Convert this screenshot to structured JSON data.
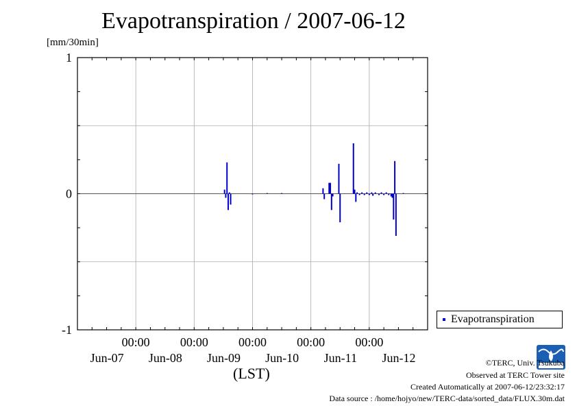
{
  "title": "Evapotranspiration / 2007-06-12",
  "y_unit_label": "[mm/30min]",
  "xlabel": "(LST)",
  "legend": {
    "label": "Evapotranspiration",
    "color": "#0000cc"
  },
  "credits": {
    "org": "©TERC, Univ. Tsukuba",
    "site": "Observed at TERC Tower site",
    "created": "Created Automatically at 2007-06-12/23:32:17",
    "source": "Data source : /home/hojyo/new/TERC-data/sorted_data/FLUX.30m.dat"
  },
  "logo": {
    "text": "TERC",
    "color": "#1a5fb4"
  },
  "chart_data": {
    "type": "bar",
    "title": "Evapotranspiration / 2007-06-12",
    "xlabel": "(LST)",
    "ylabel": "[mm/30min]",
    "ylim": [
      -1,
      1
    ],
    "xlim": [
      "2007-06-06T00:00",
      "2007-06-12T00:00"
    ],
    "yticks": [
      {
        "value": 1,
        "label": "1"
      },
      {
        "value": 0,
        "label": "0"
      },
      {
        "value": -1,
        "label": "-1"
      }
    ],
    "xticks": [
      {
        "x": "2007-06-07T00:00",
        "time": "00:00",
        "date": "Jun-07"
      },
      {
        "x": "2007-06-08T00:00",
        "time": "00:00",
        "date": "Jun-08"
      },
      {
        "x": "2007-06-09T00:00",
        "time": "00:00",
        "date": "Jun-09"
      },
      {
        "x": "2007-06-10T00:00",
        "time": "00:00",
        "date": "Jun-10"
      },
      {
        "x": "2007-06-11T00:00",
        "time": "00:00",
        "date": "Jun-11"
      }
    ],
    "xtick_date_labels_extra": [
      {
        "x": "2007-06-12T00:00",
        "date": "Jun-12"
      }
    ],
    "grid": true,
    "legend_position": "bottom-right",
    "series": [
      {
        "name": "Evapotranspiration",
        "color": "#0000cc",
        "points": [
          {
            "x": "2007-06-08T12:30",
            "y": 0.03
          },
          {
            "x": "2007-06-08T13:00",
            "y": -0.03
          },
          {
            "x": "2007-06-08T13:30",
            "y": 0.23
          },
          {
            "x": "2007-06-08T14:00",
            "y": -0.12
          },
          {
            "x": "2007-06-08T14:30",
            "y": 0.01
          },
          {
            "x": "2007-06-08T15:00",
            "y": -0.08
          },
          {
            "x": "2007-06-09T00:00",
            "y": -0.005
          },
          {
            "x": "2007-06-09T06:00",
            "y": 0.005
          },
          {
            "x": "2007-06-09T12:00",
            "y": 0.005
          },
          {
            "x": "2007-06-10T05:00",
            "y": 0.04
          },
          {
            "x": "2007-06-10T05:30",
            "y": -0.04
          },
          {
            "x": "2007-06-10T07:30",
            "y": 0.08
          },
          {
            "x": "2007-06-10T08:00",
            "y": 0.08
          },
          {
            "x": "2007-06-10T08:30",
            "y": -0.12
          },
          {
            "x": "2007-06-10T09:00",
            "y": -0.02
          },
          {
            "x": "2007-06-10T11:30",
            "y": 0.22
          },
          {
            "x": "2007-06-10T12:00",
            "y": -0.21
          },
          {
            "x": "2007-06-10T17:30",
            "y": 0.37
          },
          {
            "x": "2007-06-10T18:00",
            "y": 0.03
          },
          {
            "x": "2007-06-10T18:30",
            "y": -0.06
          },
          {
            "x": "2007-06-10T19:00",
            "y": 0.01
          },
          {
            "x": "2007-06-10T20:00",
            "y": -0.01
          },
          {
            "x": "2007-06-10T21:00",
            "y": 0.01
          },
          {
            "x": "2007-06-10T22:00",
            "y": -0.01
          },
          {
            "x": "2007-06-10T23:00",
            "y": 0.01
          },
          {
            "x": "2007-06-11T00:00",
            "y": -0.01
          },
          {
            "x": "2007-06-11T01:00",
            "y": 0.01
          },
          {
            "x": "2007-06-11T01:30",
            "y": -0.015
          },
          {
            "x": "2007-06-11T02:30",
            "y": 0.01
          },
          {
            "x": "2007-06-11T04:00",
            "y": -0.01
          },
          {
            "x": "2007-06-11T05:00",
            "y": 0.01
          },
          {
            "x": "2007-06-11T06:00",
            "y": -0.01
          },
          {
            "x": "2007-06-11T07:00",
            "y": 0.01
          },
          {
            "x": "2007-06-11T08:00",
            "y": -0.01
          },
          {
            "x": "2007-06-11T09:00",
            "y": -0.02
          },
          {
            "x": "2007-06-11T09:30",
            "y": -0.03
          },
          {
            "x": "2007-06-11T10:00",
            "y": -0.19
          },
          {
            "x": "2007-06-11T10:30",
            "y": 0.24
          },
          {
            "x": "2007-06-11T11:00",
            "y": -0.31
          },
          {
            "x": "2007-06-11T14:00",
            "y": 0.005
          }
        ]
      }
    ]
  }
}
